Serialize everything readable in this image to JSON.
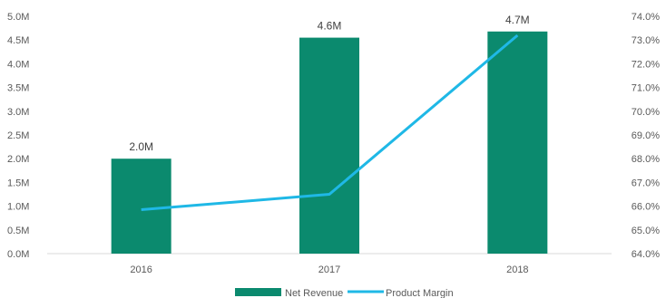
{
  "chart_data": {
    "type": "bar",
    "categories": [
      "2016",
      "2017",
      "2018"
    ],
    "series": [
      {
        "name": "Net Revenue",
        "type": "bar",
        "axis": "left",
        "values": [
          2.0,
          4.55,
          4.68
        ],
        "labels": [
          "2.0M",
          "4.6M",
          "4.7M"
        ],
        "color": "#0b8a6e"
      },
      {
        "name": "Product Margin",
        "type": "line",
        "axis": "right",
        "values": [
          65.85,
          66.5,
          73.2
        ],
        "color": "#1fb8e6"
      }
    ],
    "y_left": {
      "min": 0,
      "max": 5.0,
      "ticks": [
        "0.0M",
        "0.5M",
        "1.0M",
        "1.5M",
        "2.0M",
        "2.5M",
        "3.0M",
        "3.5M",
        "4.0M",
        "4.5M",
        "5.0M"
      ]
    },
    "y_right": {
      "min": 64.0,
      "max": 74.0,
      "ticks": [
        "64.0%",
        "65.0%",
        "66.0%",
        "67.0%",
        "68.0%",
        "69.0%",
        "70.0%",
        "71.0%",
        "72.0%",
        "73.0%",
        "74.0%"
      ]
    },
    "grid": false,
    "legend": "bottom-center"
  }
}
